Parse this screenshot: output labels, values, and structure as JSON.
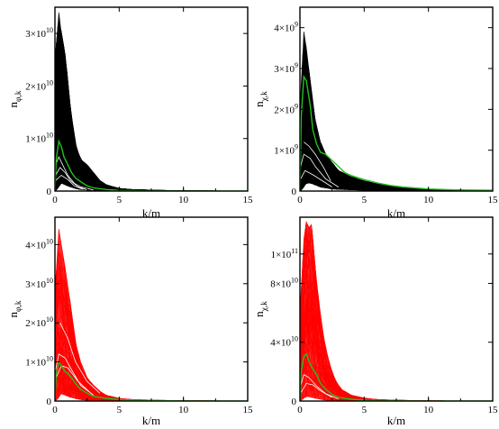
{
  "colors": {
    "black_series": "#000000",
    "red_series": "#ff0000",
    "mean_series": "#22c020",
    "frame": "#000000"
  },
  "chart_data": [
    {
      "id": "top-left",
      "type": "line",
      "xlabel": "k/m",
      "ylabel": {
        "main": "n",
        "sub": "φ,k"
      },
      "xlim": [
        0,
        15
      ],
      "ylim": [
        0,
        35000000000
      ],
      "xticks": [
        {
          "v": 0,
          "label": "0"
        },
        {
          "v": 5,
          "label": "5"
        },
        {
          "v": 10,
          "label": "10"
        },
        {
          "v": 15,
          "label": "15"
        }
      ],
      "yticks": [
        {
          "v": 0,
          "label": "0",
          "exp": ""
        },
        {
          "v": 10000000000,
          "label": "1×10",
          "exp": "10"
        },
        {
          "v": 20000000000,
          "label": "2×10",
          "exp": "10"
        },
        {
          "v": 30000000000,
          "label": "3×10",
          "exp": "10"
        }
      ],
      "bundle_color": "black",
      "bundle": {
        "x": [
          0.05,
          0.3,
          0.5,
          0.8,
          1.2,
          1.6,
          2.0,
          2.5,
          3.0,
          3.5,
          4.0,
          5.0,
          6.0,
          8.0,
          10.0,
          13.0,
          15.0
        ],
        "upper": [
          25000000000,
          34000000000,
          30000000000,
          26000000000,
          16000000000,
          9000000000,
          6000000000,
          5000000000,
          3500000000,
          2000000000,
          1200000000,
          500000000,
          300000000,
          150000000,
          80000000,
          30000000,
          0
        ],
        "lower": [
          0,
          800000000,
          1500000000,
          1200000000,
          800000000,
          500000000,
          300000000,
          200000000,
          100000000,
          80000000,
          50000000,
          20000000,
          10000000,
          5000000,
          0,
          0,
          0
        ]
      },
      "white_curves": [
        {
          "x": [
            0.05,
            0.3,
            0.6,
            1.0,
            1.5,
            2.0,
            3.0
          ],
          "y": [
            5000000000,
            6500000000,
            5000000000,
            3000000000,
            1500000000,
            800000000,
            200000000
          ]
        },
        {
          "x": [
            0.05,
            0.4,
            0.8,
            1.2,
            1.8,
            2.5
          ],
          "y": [
            3000000000,
            4500000000,
            3500000000,
            2000000000,
            800000000,
            200000000
          ]
        },
        {
          "x": [
            0.05,
            0.5,
            1.0,
            1.5,
            2.2
          ],
          "y": [
            2000000000,
            3000000000,
            2200000000,
            1000000000,
            300000000
          ]
        }
      ],
      "mean": {
        "x": [
          0,
          0.1,
          0.3,
          0.5,
          0.7,
          1.0,
          1.3,
          1.6,
          2.0,
          2.5,
          3.0,
          4.0,
          5.0,
          7.0,
          10.0,
          15.0
        ],
        "y": [
          0,
          6000000000,
          9500000000,
          8500000000,
          6500000000,
          5000000000,
          3500000000,
          2500000000,
          1800000000,
          1000000000,
          600000000,
          300000000,
          120000000,
          40000000,
          20000000,
          0
        ]
      }
    },
    {
      "id": "top-right",
      "type": "line",
      "xlabel": "k/m",
      "ylabel": {
        "main": "n",
        "sub": "χ,k"
      },
      "xlim": [
        0,
        15
      ],
      "ylim": [
        0,
        4500000000
      ],
      "xticks": [
        {
          "v": 0,
          "label": "0"
        },
        {
          "v": 5,
          "label": "5"
        },
        {
          "v": 10,
          "label": "10"
        },
        {
          "v": 15,
          "label": "15"
        }
      ],
      "yticks": [
        {
          "v": 0,
          "label": "0",
          "exp": ""
        },
        {
          "v": 1000000000,
          "label": "1×10",
          "exp": "9"
        },
        {
          "v": 2000000000,
          "label": "2×10",
          "exp": "9"
        },
        {
          "v": 3000000000,
          "label": "3×10",
          "exp": "9"
        },
        {
          "v": 4000000000,
          "label": "4×10",
          "exp": "9"
        }
      ],
      "bundle_color": "black",
      "bundle": {
        "x": [
          0.05,
          0.3,
          0.5,
          0.8,
          1.2,
          1.6,
          2.0,
          2.5,
          3.0,
          4.0,
          5.0,
          6.0,
          7.0,
          8.0,
          10.0,
          12.0,
          15.0
        ],
        "upper": [
          2000000000,
          3900000000,
          3500000000,
          2700000000,
          1700000000,
          1200000000,
          900000000,
          700000000,
          500000000,
          350000000,
          250000000,
          180000000,
          120000000,
          90000000,
          50000000,
          30000000,
          20000000
        ],
        "lower": [
          0,
          100000000,
          200000000,
          200000000,
          150000000,
          100000000,
          80000000,
          50000000,
          40000000,
          30000000,
          20000000,
          10000000,
          5000000,
          0,
          0,
          0,
          0
        ]
      },
      "white_curves": [
        {
          "x": [
            0.05,
            0.3,
            0.8,
            1.2,
            2.0,
            3.0
          ],
          "y": [
            600000000,
            900000000,
            800000000,
            600000000,
            300000000,
            100000000
          ]
        },
        {
          "x": [
            0.05,
            0.4,
            1.0,
            1.5,
            2.5
          ],
          "y": [
            300000000,
            500000000,
            400000000,
            300000000,
            100000000
          ]
        },
        {
          "x": [
            0.3,
            0.7,
            1.2,
            1.8,
            2.4
          ],
          "y": [
            1200000000,
            1100000000,
            900000000,
            600000000,
            250000000
          ]
        }
      ],
      "mean": {
        "x": [
          0,
          0.1,
          0.3,
          0.5,
          0.8,
          1.0,
          1.3,
          1.6,
          2.0,
          2.5,
          3.0,
          3.5,
          4.0,
          5.0,
          6.0,
          7.0,
          8.0,
          10.0,
          12.0,
          15.0
        ],
        "y": [
          0,
          1800000000,
          2800000000,
          2700000000,
          2100000000,
          1500000000,
          1150000000,
          950000000,
          900000000,
          750000000,
          600000000,
          450000000,
          380000000,
          280000000,
          200000000,
          140000000,
          100000000,
          50000000,
          30000000,
          20000000
        ]
      }
    },
    {
      "id": "bottom-left",
      "type": "line",
      "xlabel": "k/m",
      "ylabel": {
        "main": "n",
        "sub": "φ,k"
      },
      "xlim": [
        0,
        15
      ],
      "ylim": [
        0,
        47000000000
      ],
      "xticks": [
        {
          "v": 0,
          "label": "0"
        },
        {
          "v": 5,
          "label": "5"
        },
        {
          "v": 10,
          "label": "10"
        },
        {
          "v": 15,
          "label": "15"
        }
      ],
      "yticks": [
        {
          "v": 0,
          "label": "0",
          "exp": ""
        },
        {
          "v": 10000000000,
          "label": "1×10",
          "exp": "10"
        },
        {
          "v": 20000000000,
          "label": "2×10",
          "exp": "10"
        },
        {
          "v": 30000000000,
          "label": "3×10",
          "exp": "10"
        },
        {
          "v": 40000000000,
          "label": "4×10",
          "exp": "10"
        }
      ],
      "bundle_color": "red",
      "bundle": {
        "x": [
          0.05,
          0.3,
          0.5,
          0.8,
          1.2,
          1.6,
          2.0,
          2.5,
          3.0,
          3.5,
          4.0,
          5.0,
          6.0,
          8.0,
          10.0,
          13.0,
          15.0
        ],
        "upper": [
          30000000000,
          44000000000,
          40000000000,
          34000000000,
          25000000000,
          15000000000,
          10000000000,
          6000000000,
          4000000000,
          2500000000,
          1500000000,
          700000000,
          400000000,
          200000000,
          100000000,
          50000000,
          0
        ],
        "lower": [
          0,
          1000000000,
          2000000000,
          1500000000,
          1000000000,
          700000000,
          400000000,
          200000000,
          100000000,
          80000000,
          50000000,
          20000000,
          10000000,
          5000000,
          0,
          0,
          0
        ]
      },
      "white_curves": [
        {
          "x": [
            0.05,
            0.3,
            0.8,
            1.3,
            2.0,
            3.0
          ],
          "y": [
            8000000000,
            12000000000,
            11000000000,
            8000000000,
            4000000000,
            1500000000
          ]
        },
        {
          "x": [
            0.1,
            0.5,
            1.0,
            1.8,
            2.8
          ],
          "y": [
            6000000000,
            9000000000,
            8500000000,
            5000000000,
            2000000000
          ]
        },
        {
          "x": [
            0.4,
            1.0,
            1.6,
            2.5,
            3.5
          ],
          "y": [
            20000000000,
            16000000000,
            10000000000,
            5000000000,
            2000000000
          ]
        }
      ],
      "mean": {
        "x": [
          0,
          0.1,
          0.3,
          0.5,
          0.8,
          1.0,
          1.3,
          1.6,
          2.0,
          2.5,
          3.0,
          4.0,
          5.0,
          6.0,
          8.0,
          10.0,
          15.0
        ],
        "y": [
          0,
          7000000000,
          10000000000,
          9000000000,
          7500000000,
          7000000000,
          6000000000,
          4500000000,
          3000000000,
          2000000000,
          1200000000,
          700000000,
          400000000,
          200000000,
          100000000,
          40000000,
          0
        ]
      }
    },
    {
      "id": "bottom-right",
      "type": "line",
      "xlabel": "k/m",
      "ylabel": {
        "main": "n",
        "sub": "χ,k"
      },
      "xlim": [
        0,
        15
      ],
      "ylim": [
        0,
        125000000000
      ],
      "xticks": [
        {
          "v": 0,
          "label": "0"
        },
        {
          "v": 5,
          "label": "5"
        },
        {
          "v": 10,
          "label": "10"
        },
        {
          "v": 15,
          "label": "15"
        }
      ],
      "yticks": [
        {
          "v": 0,
          "label": "0",
          "exp": ""
        },
        {
          "v": 40000000000,
          "label": "4×10",
          "exp": "10"
        },
        {
          "v": 80000000000,
          "label": "8×10",
          "exp": "10"
        },
        {
          "v": 100000000000,
          "label": "1×10",
          "exp": "11"
        }
      ],
      "bundle_color": "red",
      "bundle": {
        "x": [
          0.05,
          0.3,
          0.5,
          0.7,
          0.9,
          1.2,
          1.5,
          1.8,
          2.2,
          2.7,
          3.2,
          4.0,
          5.0,
          6.0,
          8.0,
          10.0,
          15.0
        ],
        "upper": [
          60000000000,
          110000000000,
          122000000000,
          118000000000,
          120000000000,
          90000000000,
          65000000000,
          45000000000,
          28000000000,
          15000000000,
          8000000000,
          4000000000,
          2000000000,
          1000000000,
          500000000,
          200000000,
          0
        ],
        "lower": [
          0,
          2000000000,
          3000000000,
          3000000000,
          2500000000,
          2000000000,
          1500000000,
          1000000000,
          500000000,
          300000000,
          200000000,
          100000000,
          50000000,
          20000000,
          0,
          0,
          0
        ]
      },
      "white_curves": [
        {
          "x": [
            0.05,
            0.3,
            0.7,
            1.2,
            2.0,
            3.0
          ],
          "y": [
            10000000000,
            18000000000,
            16000000000,
            11000000000,
            5000000000,
            1500000000
          ]
        },
        {
          "x": [
            0.1,
            0.5,
            1.0,
            1.6,
            2.5
          ],
          "y": [
            6000000000,
            12000000000,
            11000000000,
            7000000000,
            2500000000
          ]
        }
      ],
      "mean": {
        "x": [
          0,
          0.1,
          0.3,
          0.5,
          0.8,
          1.0,
          1.3,
          1.6,
          2.0,
          2.5,
          3.0,
          4.0,
          5.0,
          6.0,
          8.0,
          10.0,
          15.0
        ],
        "y": [
          0,
          20000000000,
          30000000000,
          32000000000,
          25000000000,
          22000000000,
          18000000000,
          12000000000,
          8000000000,
          4500000000,
          2500000000,
          1200000000,
          600000000,
          300000000,
          100000000,
          50000000,
          0
        ]
      }
    }
  ]
}
